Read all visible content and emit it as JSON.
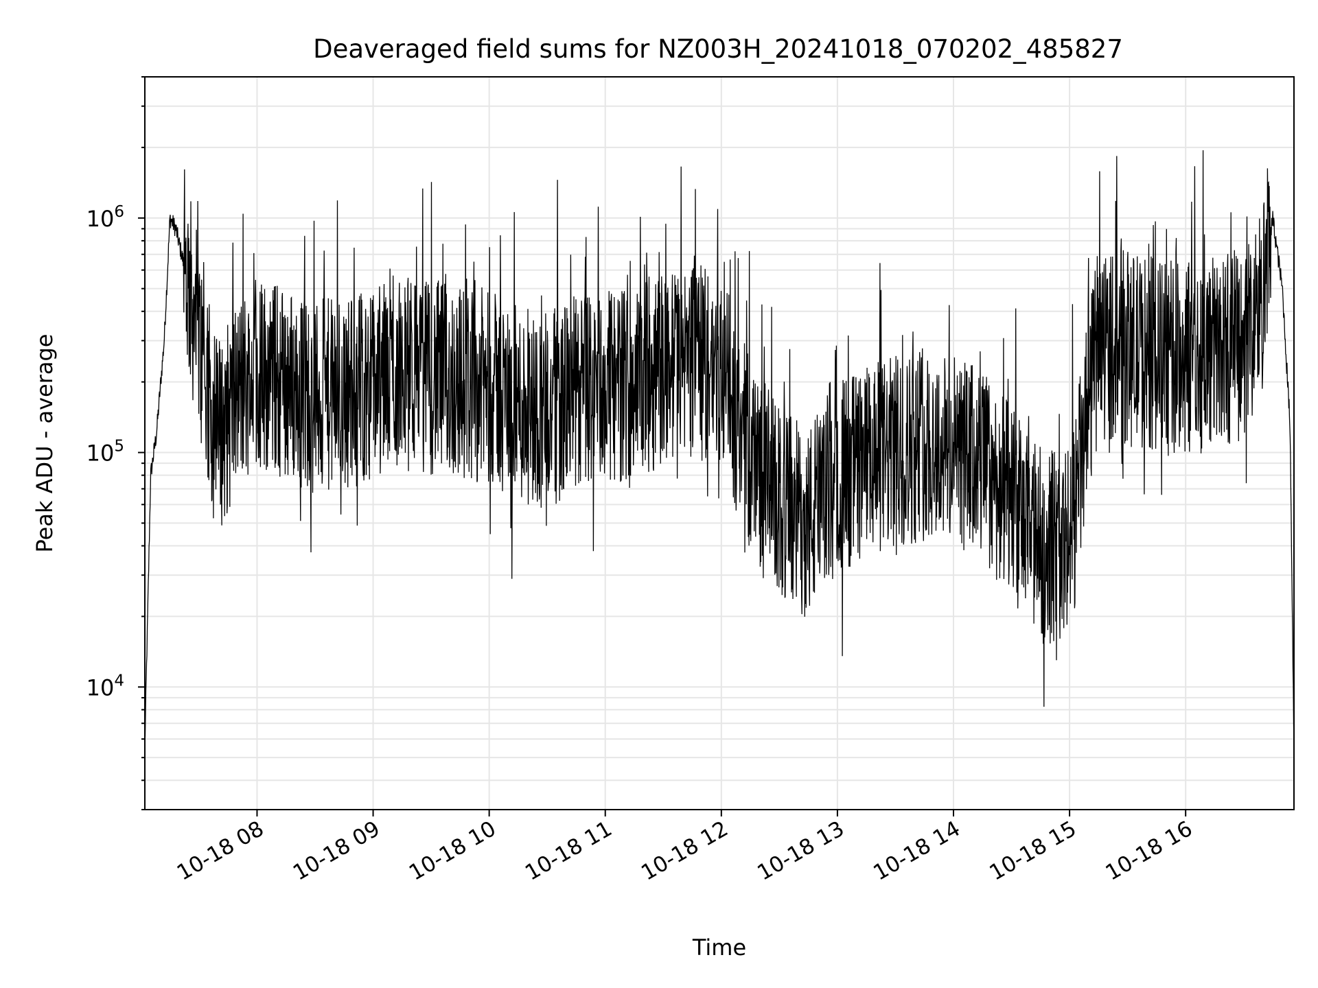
{
  "chart_data": {
    "type": "line",
    "title": "Deaveraged field sums for NZ003H_20241018_070202_485827",
    "xlabel": "Time",
    "ylabel": "Peak ADU - average",
    "xscale": "time",
    "yscale": "log",
    "xlim": [
      "10-18 07:02",
      "10-18 16:56"
    ],
    "ylim": [
      3000,
      4000000
    ],
    "grid": true,
    "x_ticks": [
      "10-18 08",
      "10-18 09",
      "10-18 10",
      "10-18 11",
      "10-18 12",
      "10-18 13",
      "10-18 14",
      "10-18 15",
      "10-18 16"
    ],
    "y_ticks": [
      {
        "value": 10000,
        "base": "10",
        "exp": "4"
      },
      {
        "value": 100000,
        "base": "10",
        "exp": "5"
      },
      {
        "value": 1000000,
        "base": "10",
        "exp": "6"
      }
    ],
    "line_color": "#000000",
    "grid_color": "#e6e6e6",
    "series": [
      {
        "x": [
          "10-18 07:02",
          "10-18 07:05",
          "10-18 07:08",
          "10-18 07:12",
          "10-18 07:15",
          "10-18 07:18",
          "10-18 07:21",
          "10-18 07:25",
          "10-18 07:30",
          "10-18 07:35",
          "10-18 07:40",
          "10-18 07:45",
          "10-18 07:50",
          "10-18 07:55",
          "10-18 08:00",
          "10-18 08:15",
          "10-18 08:30",
          "10-18 08:45",
          "10-18 09:00",
          "10-18 09:15",
          "10-18 09:30",
          "10-18 09:45",
          "10-18 10:00",
          "10-18 10:15",
          "10-18 10:30",
          "10-18 10:45",
          "10-18 11:00",
          "10-18 11:15",
          "10-18 11:30",
          "10-18 11:45",
          "10-18 12:00",
          "10-18 12:15",
          "10-18 12:30",
          "10-18 12:45",
          "10-18 13:00",
          "10-18 13:15",
          "10-18 13:30",
          "10-18 13:45",
          "10-18 14:00",
          "10-18 14:15",
          "10-18 14:30",
          "10-18 14:45",
          "10-18 15:00",
          "10-18 15:15",
          "10-18 15:30",
          "10-18 15:45",
          "10-18 16:00",
          "10-18 16:15",
          "10-18 16:30",
          "10-18 16:40",
          "10-18 16:45",
          "10-18 16:50",
          "10-18 16:54",
          "10-18 16:56"
        ],
        "y": [
          5500,
          80000,
          120000,
          300000,
          1000000,
          900000,
          700000,
          500000,
          300000,
          150000,
          120000,
          140000,
          180000,
          200000,
          220000,
          200000,
          170000,
          180000,
          200000,
          220000,
          210000,
          200000,
          190000,
          160000,
          150000,
          180000,
          190000,
          200000,
          230000,
          250000,
          220000,
          100000,
          60000,
          50000,
          80000,
          90000,
          100000,
          110000,
          100000,
          90000,
          60000,
          40000,
          40000,
          300000,
          280000,
          260000,
          250000,
          270000,
          300000,
          450000,
          1000000,
          500000,
          130000,
          5500
        ]
      }
    ]
  }
}
